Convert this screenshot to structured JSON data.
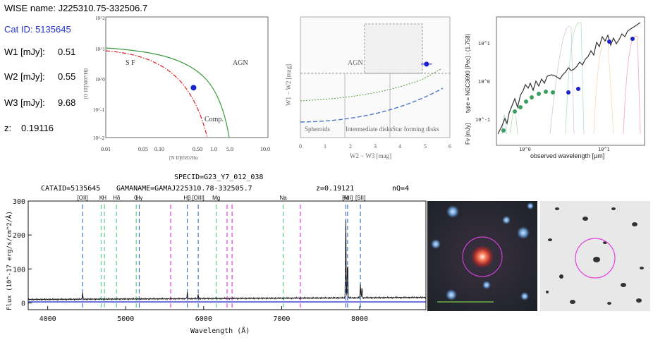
{
  "info": {
    "wise_name": "WISE name: J225310.75-332506.7",
    "cat_id": "Cat ID: 5135645",
    "w1_label": "W1 [mJy]:",
    "w1_value": "0.51",
    "w2_label": "W2 [mJy]:",
    "w2_value": "0.55",
    "w3_label": "W3 [mJy]:",
    "w3_value": "9.68",
    "z_label": "z:",
    "z_value": "0.19116"
  },
  "colors": {
    "accent_blue": "#2233cc",
    "curve_green": "#3c9a3c",
    "curve_red": "#e02020",
    "line_blue": "#4a78c8",
    "line_green": "#5ccf8a",
    "line_magenta": "#e040e0"
  },
  "chart_data": [
    {
      "type": "scatter",
      "name": "BPT diagram",
      "xlabel": "[N II]6583/Hα",
      "ylabel": "[O III]5007/Hβ",
      "xscale": "log",
      "yscale": "log",
      "xlim": [
        0.01,
        10.0
      ],
      "ylim": [
        0.01,
        100
      ],
      "xticks": [
        "0.01",
        "0.05",
        "0.10",
        "0.50",
        "1.0",
        "5.0",
        "10.0"
      ],
      "yticks": [
        "10^2",
        "10^1",
        "10^0",
        "10^-1",
        "10^-2"
      ],
      "region_labels": [
        "S F",
        "AGN",
        "Comp."
      ],
      "points": [
        {
          "x": 0.42,
          "y": 0.45
        }
      ]
    },
    {
      "type": "scatter",
      "name": "WISE colour-colour",
      "xlabel": "W2 − W3 [mag]",
      "ylabel": "W1 − W2 [mag]",
      "xlim": [
        0,
        6
      ],
      "ylim": [
        -0.6,
        1.6
      ],
      "xticks": [
        "0",
        "1",
        "2",
        "3",
        "4",
        "5",
        "6"
      ],
      "region_labels": [
        "AGN",
        "Spheroids",
        "Intermediate disks",
        "Star forming disks"
      ],
      "points": [
        {
          "x": 5.06,
          "y": 0.74,
          "xerr": 0.22
        }
      ]
    },
    {
      "type": "line",
      "name": "SED fit",
      "title": "type = NGC3690 [Pec] : (1.758)",
      "xlabel": "observed wavelength [µm]",
      "ylabel": "Fν [mJy]",
      "xscale": "log",
      "yscale": "log",
      "xticks": [
        "10^0",
        "10^1"
      ],
      "yticks": [
        "10^1",
        "10^0",
        "10^-1"
      ],
      "photometry_green": [
        [
          0.36,
          0.05
        ],
        [
          0.47,
          0.14
        ],
        [
          0.62,
          0.18
        ],
        [
          0.75,
          0.25
        ],
        [
          0.9,
          0.31
        ],
        [
          1.25,
          0.4
        ],
        [
          1.65,
          0.46
        ],
        [
          2.2,
          0.44
        ]
      ],
      "photometry_blue": [
        [
          3.4,
          0.51
        ],
        [
          4.6,
          0.55
        ],
        [
          12,
          9.68
        ],
        [
          22,
          11.8
        ]
      ]
    },
    {
      "type": "line",
      "name": "Optical spectrum",
      "header": {
        "specid": "SPECID=G23_Y7_012_038",
        "cataid": "CATAID=5135645",
        "gamaname": "GAMANAME=GAMAJ225310.78-332505.7",
        "z": "z=0.19121",
        "nq": "nQ=4"
      },
      "xlabel": "Wavelength (Å)",
      "ylabel": "Flux (10^-17 erg/s/cm^2/Å)",
      "xlim": [
        3750,
        8850
      ],
      "ylim": [
        -20,
        300
      ],
      "xticks": [
        4000,
        5000,
        6000,
        7000,
        8000
      ],
      "yticks": [
        0,
        100,
        200,
        300
      ],
      "line_markers": [
        {
          "label": "[OII]",
          "x": 4447,
          "type": "emission"
        },
        {
          "label": "K",
          "x": 4686,
          "type": "absorption"
        },
        {
          "label": "H",
          "x": 4728,
          "type": "absorption"
        },
        {
          "label": "Hδ",
          "x": 4882,
          "type": "absorption"
        },
        {
          "label": "G",
          "x": 5135,
          "type": "absorption"
        },
        {
          "label": "Hγ",
          "x": 5174,
          "type": "emission"
        },
        {
          "label": "Hβ",
          "x": 5790,
          "type": "emission"
        },
        {
          "label": "[OIII]",
          "x": 5930,
          "type": "emission"
        },
        {
          "label": "Mg",
          "x": 6161,
          "type": "absorption"
        },
        {
          "label": "Na",
          "x": 7020,
          "type": "absorption"
        },
        {
          "label": "Hα",
          "x": 7822,
          "type": "emission"
        },
        {
          "label": "[NII]",
          "x": 7845,
          "type": "emission"
        },
        {
          "label": "[SII]",
          "x": 8010,
          "type": "emission"
        }
      ],
      "sky_lines": [
        5577,
        6300,
        6364,
        7240
      ]
    }
  ]
}
